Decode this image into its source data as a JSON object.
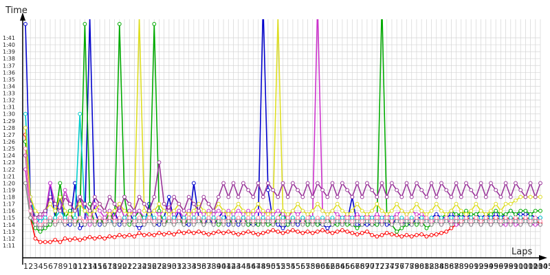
{
  "chart_data": {
    "type": "line",
    "title": "",
    "xlabel": "Laps",
    "ylabel": "Time",
    "grid": true,
    "legend": "none",
    "x_tick_labels": [
      "1",
      "2",
      "3",
      "4",
      "5",
      "6",
      "7",
      "8",
      "9",
      "10",
      "11",
      "12",
      "13",
      "14",
      "15",
      "16",
      "17",
      "18",
      "19",
      "20",
      "21",
      "22",
      "23",
      "24",
      "25",
      "26",
      "27",
      "28",
      "29",
      "30",
      "31",
      "32",
      "33",
      "34",
      "35",
      "36",
      "37",
      "38",
      "39",
      "40",
      "41",
      "42",
      "43",
      "44",
      "45",
      "46",
      "47",
      "48",
      "49",
      "50",
      "51",
      "52",
      "53",
      "54",
      "55",
      "56",
      "57",
      "58",
      "59",
      "60",
      "61",
      "62",
      "63",
      "64",
      "65",
      "66",
      "67",
      "68",
      "69",
      "70",
      "71",
      "72",
      "73",
      "74",
      "75",
      "76",
      "77",
      "78",
      "79",
      "80",
      "81",
      "82",
      "83",
      "84",
      "85",
      "86",
      "87",
      "88",
      "89",
      "90",
      "91",
      "92",
      "93",
      "94",
      "95",
      "96",
      "97",
      "98",
      "99",
      "100",
      "101",
      "102",
      "103",
      "104",
      "105"
    ],
    "y_tick_labels": [
      "1:11",
      "1:12",
      "1:13",
      "1:14",
      "1:15",
      "1:16",
      "1:17",
      "1:18",
      "1:19",
      "1:20",
      "1:21",
      "1:22",
      "1:23",
      "1:24",
      "1:25",
      "1:26",
      "1:27",
      "1:28",
      "1:29",
      "1:30",
      "1:31",
      "1:32",
      "1:33",
      "1:34",
      "1:35",
      "1:36",
      "1:37",
      "1:38",
      "1:39",
      "1:40",
      "1:41"
    ],
    "xlim": [
      1,
      105
    ],
    "ylim_seconds": [
      71,
      101
    ],
    "series": [
      {
        "color": "#ff0000",
        "values": [
          87,
          75,
          72,
          71.5,
          71.5,
          71.5,
          71.8,
          71.5,
          72,
          71.8,
          72,
          71.8,
          72,
          72.2,
          72,
          72.2,
          72,
          72.3,
          72.2,
          72.5,
          72.3,
          72.5,
          72.3,
          72.8,
          72.5,
          72.6,
          72.5,
          72.8,
          72.6,
          72.8,
          72.6,
          73,
          72.8,
          73,
          72.8,
          73,
          72.8,
          72.6,
          72.8,
          73,
          72.8,
          73,
          72.8,
          72.6,
          72.8,
          73,
          72.8,
          72.6,
          72.8,
          73,
          73.2,
          73,
          72.8,
          73,
          73.2,
          73,
          72.8,
          73,
          72.8,
          73,
          73.2,
          73,
          72.8,
          73,
          73.2,
          73,
          72.8,
          72.6,
          72.8,
          73,
          72.5,
          72.3,
          72.5,
          72.8,
          72.6,
          72.5,
          72.3,
          72.5,
          72.3,
          72.5,
          72.6,
          72.3,
          72.5,
          72.6,
          72.8,
          73,
          73.5,
          74,
          74.5,
          74.8,
          75,
          74.8,
          74.5,
          74.8,
          75,
          74.8,
          75,
          74.8,
          75,
          74.8,
          75,
          74.8,
          75,
          74.5,
          74.2
        ]
      },
      {
        "color": "#0000cc",
        "values": [
          103,
          78,
          74,
          73.5,
          74,
          80,
          75,
          78,
          74,
          74,
          80,
          73.5,
          74,
          104,
          76,
          74,
          75,
          74.5,
          76,
          74,
          75,
          76,
          74,
          73.5,
          74,
          77,
          74,
          74,
          75,
          78,
          74.5,
          76,
          74,
          74,
          80,
          75,
          74,
          75,
          74,
          75,
          76,
          74,
          75,
          74,
          75,
          74,
          74,
          74,
          106,
          79,
          74.5,
          74,
          73.5,
          74,
          74.5,
          74,
          75,
          74,
          74.5,
          74,
          74,
          73.5,
          74,
          74.5,
          74,
          74.5,
          78,
          74,
          74,
          74,
          74,
          74,
          74.5,
          74,
          74,
          75,
          74.5,
          74,
          74,
          75,
          75,
          74.5,
          75,
          75.5,
          75,
          75,
          75.5,
          75,
          75.5,
          75,
          75.5,
          75.5,
          75,
          75.5,
          75,
          75.5,
          75,
          75.5,
          76,
          75.5,
          75.5,
          75.5,
          75.5,
          75,
          75
        ]
      },
      {
        "color": "#00aa00",
        "values": [
          86,
          75,
          73.5,
          73,
          73.5,
          74,
          75,
          80,
          75,
          76,
          74,
          75,
          103,
          77,
          74,
          75,
          74,
          76,
          74,
          103,
          78,
          74,
          75,
          76,
          74.5,
          75,
          103,
          76,
          74,
          75,
          74.5,
          75,
          74,
          75,
          74.5,
          75,
          74,
          74.5,
          75,
          74,
          74.5,
          75,
          74,
          74.5,
          75,
          74,
          74.5,
          74,
          74.5,
          74,
          74,
          75,
          76,
          74,
          75,
          74.5,
          75,
          74,
          74.5,
          74,
          74.5,
          75,
          74,
          74,
          74.5,
          74,
          74,
          73.5,
          74,
          74.5,
          74,
          74,
          106,
          75,
          74,
          73,
          73.5,
          74,
          74.5,
          74,
          74.5,
          73.5,
          74,
          74.5,
          75,
          75.5,
          76,
          75.5,
          75.5,
          76,
          75.5,
          75.5,
          76,
          75.5,
          75.5,
          76,
          75.5,
          75.5,
          76,
          75.5,
          76,
          76,
          75.5,
          76,
          76
        ]
      },
      {
        "color": "#cc33cc",
        "values": [
          82,
          76,
          74,
          75,
          75.5,
          80,
          77,
          76,
          79,
          77,
          76,
          78,
          76,
          74,
          77,
          76,
          75,
          76,
          75,
          77,
          75,
          76,
          75.5,
          76,
          75,
          75.5,
          76,
          75.5,
          76,
          76.5,
          75.5,
          76,
          75,
          76,
          75.5,
          76,
          75.5,
          76,
          75.5,
          76,
          75.5,
          76,
          75.5,
          76,
          75.5,
          76,
          75.5,
          76,
          75.5,
          76,
          75.5,
          76,
          75.5,
          75,
          76,
          75.5,
          76,
          75.5,
          75,
          106,
          76,
          75.5,
          76,
          75.5,
          75,
          75.5,
          75,
          75.5,
          75,
          75.5,
          75,
          75.5,
          75,
          75.5,
          75,
          75.5,
          76,
          75.5,
          76,
          75.5,
          75.5,
          75,
          74.5,
          74.5,
          74,
          74.5,
          74.5,
          74,
          74,
          74.5,
          74,
          74.5,
          74,
          74.5,
          74,
          74.5,
          74,
          74,
          74.5,
          74,
          74,
          74.5,
          74,
          74,
          74
        ]
      },
      {
        "color": "#00cccc",
        "values": [
          90,
          78,
          75,
          74.5,
          75,
          74.5,
          75,
          76,
          75,
          74.5,
          75,
          90,
          76,
          75,
          74.5,
          75,
          74.5,
          75,
          74,
          74.5,
          75,
          74.5,
          75,
          74.5,
          75,
          75.5,
          75,
          74.5,
          75,
          74.5,
          75,
          74.5,
          75,
          74.5,
          75,
          74.5,
          75,
          74.5,
          75,
          74.5,
          75,
          74.5,
          75,
          74.5,
          75,
          74.5,
          75,
          74.5,
          75,
          74.5,
          75,
          74.5,
          75,
          74.5,
          75,
          74.5,
          75,
          74.5,
          75,
          74.5,
          75,
          74.5,
          75,
          74.5,
          75,
          74.5,
          75,
          74.5,
          75,
          74.5,
          75,
          74.5,
          75,
          74.5,
          75,
          74.5,
          75,
          74.5,
          75,
          74.5,
          75,
          74.5,
          75,
          74.5,
          75,
          74.5,
          75,
          74.5,
          75,
          74.5,
          75,
          74.5,
          75,
          74.5,
          75,
          74.5,
          75,
          74.5,
          75,
          74.5,
          75,
          74.5,
          75,
          74.5,
          75
        ]
      },
      {
        "color": "#dddd22",
        "values": [
          88,
          78,
          76,
          75.5,
          76,
          77,
          76,
          78,
          76,
          75.5,
          76,
          77,
          76,
          75.5,
          76,
          77,
          76,
          75.5,
          76,
          77,
          76,
          75.5,
          76,
          104,
          76,
          75.5,
          76,
          77,
          76,
          75.5,
          76,
          77,
          76,
          75.5,
          76,
          77,
          76,
          75.5,
          76,
          77,
          76,
          75.5,
          76,
          77,
          76,
          75.5,
          76,
          77,
          76,
          75.5,
          76,
          104,
          76,
          75.5,
          76,
          77,
          76,
          75.5,
          76,
          77,
          76,
          75.5,
          76,
          77,
          76,
          75.5,
          76,
          77,
          76,
          75.5,
          76,
          77,
          76,
          75.5,
          76,
          77,
          76,
          75.5,
          76,
          77,
          76,
          75.5,
          76,
          77,
          76,
          75.5,
          76,
          77,
          76,
          75.5,
          76,
          77,
          76,
          75.5,
          76,
          77,
          76,
          77,
          77,
          77.5,
          78,
          78,
          78,
          78,
          78
        ]
      },
      {
        "color": "#993399",
        "values": [
          84,
          77,
          75,
          75.5,
          76,
          78,
          77,
          76,
          78,
          77,
          76,
          78,
          77,
          76,
          78,
          77,
          76,
          78,
          77,
          76,
          78,
          77,
          76,
          78,
          77,
          76,
          78,
          83,
          77,
          76,
          78,
          77,
          76,
          78,
          77,
          76,
          78,
          77,
          76,
          78,
          80,
          78,
          80,
          78,
          80,
          79,
          78,
          80,
          78,
          80,
          79,
          78,
          80,
          78,
          80,
          79,
          78,
          80,
          78,
          80,
          79,
          78,
          80,
          78,
          80,
          79,
          78,
          80,
          78,
          80,
          79,
          78,
          80,
          78,
          80,
          79,
          78,
          80,
          78,
          80,
          79,
          78,
          80,
          78,
          80,
          79,
          78,
          80,
          78,
          80,
          79,
          78,
          80,
          78,
          80,
          79,
          78,
          80,
          78,
          80,
          79,
          78,
          80,
          78,
          80
        ]
      },
      {
        "color": "#888888",
        "values": [
          80,
          75,
          74,
          73.5,
          74,
          74.5,
          74,
          74.5,
          74,
          74.5,
          74,
          74.5,
          74,
          74.5,
          74,
          74.5,
          74,
          74.5,
          74,
          74.5,
          74,
          74.5,
          74,
          74.5,
          74,
          74.5,
          74,
          74.5,
          74,
          74.5,
          74,
          74.5,
          74,
          74.5,
          74,
          74.5,
          74,
          74.5,
          74,
          74.5,
          74,
          74.5,
          74,
          74.5,
          74,
          74.5,
          74,
          74.5,
          74,
          74.5,
          74,
          74.5,
          74,
          74.5,
          74,
          74.5,
          74,
          74.5,
          74,
          74.5,
          74,
          74.5,
          74,
          74.5,
          74,
          74.5,
          74,
          74.5,
          74,
          74.5,
          74,
          74.5,
          74,
          74.5,
          74,
          74.5,
          74,
          74.5,
          74,
          74.5,
          74,
          74.5,
          74,
          74.5,
          74,
          74.5,
          74,
          74.5,
          74,
          74.5,
          74,
          74.5,
          74,
          74.5,
          74,
          74.5,
          74,
          74.5,
          74,
          74.5,
          74,
          74.5,
          74,
          74.5,
          74
        ]
      },
      {
        "color": "#ff88aa",
        "values": [
          85,
          76,
          74.5,
          74,
          74.5,
          75,
          74.5,
          75,
          74.5,
          75,
          74.5,
          75,
          74.5,
          75,
          74.5,
          75,
          74.5,
          75,
          74.5,
          75,
          74.5,
          75,
          74.5,
          75,
          74.5,
          75,
          74.5,
          75,
          74.5,
          75,
          74.5,
          75,
          74.5,
          75,
          74.5,
          75,
          74.5,
          75,
          74.5,
          75,
          74.5,
          75,
          74.5,
          75,
          74.5,
          75,
          74.5,
          75,
          74.5,
          75,
          74.5,
          75,
          74.5,
          75,
          74.5,
          75,
          74.5,
          75,
          74.5,
          75,
          74.5,
          75,
          74.5,
          75,
          74.5,
          75,
          74.5,
          75,
          74.5,
          75,
          74.5,
          75,
          74.5,
          75,
          74.5,
          75,
          74.5,
          75,
          74.5,
          75,
          74.5,
          75,
          74.5,
          75,
          74.5,
          75,
          74.5,
          75,
          74.5,
          75,
          74.5,
          75,
          74.5,
          75,
          74.5,
          75,
          74.5,
          75,
          74.5,
          75,
          74.5,
          75,
          74.5,
          75,
          74.5
        ]
      }
    ]
  }
}
